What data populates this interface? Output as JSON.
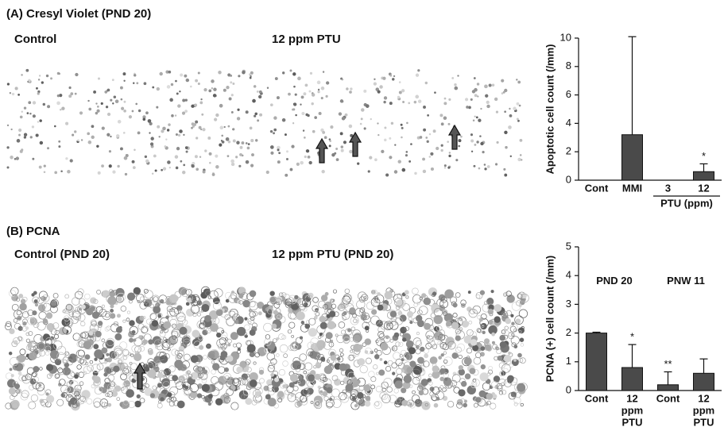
{
  "panels": [
    {
      "title": "(A) Cresyl Violet (PND 20)",
      "left_label": "Control",
      "right_label": "12 ppm PTU"
    },
    {
      "title": "(B) PCNA",
      "left_label": "Control (PND 20)",
      "right_label": "12 ppm PTU (PND 20)"
    }
  ],
  "chart_data": [
    {
      "type": "bar",
      "ylabel": "Apoptotic cell count (/mm)",
      "categories": [
        "Cont",
        "MMI",
        "3",
        "12"
      ],
      "group_label": "PTU (ppm)",
      "values": [
        0,
        3.2,
        0,
        0.6
      ],
      "errors": [
        null,
        6.9,
        null,
        0.55
      ],
      "annotations": [
        null,
        null,
        null,
        "*"
      ],
      "color": "#4a4a4a",
      "ylim": [
        0,
        10
      ],
      "yticks": [
        0,
        2,
        4,
        6,
        8,
        10
      ]
    },
    {
      "type": "bar",
      "ylabel": "PCNA (+) cell count (/mm)",
      "categories": [
        "Cont",
        [
          "12",
          "ppm",
          "PTU"
        ],
        "Cont",
        [
          "12",
          "ppm",
          "PTU"
        ]
      ],
      "group_labels": [
        "PND 20",
        "PNW 11"
      ],
      "values": [
        2.0,
        0.8,
        0.2,
        0.6
      ],
      "errors": [
        0.03,
        0.8,
        0.45,
        0.5
      ],
      "annotations": [
        null,
        "*",
        "**",
        null
      ],
      "color": "#4a4a4a",
      "ylim": [
        0,
        5
      ],
      "yticks": [
        0,
        1,
        2,
        3,
        4,
        5
      ]
    }
  ]
}
